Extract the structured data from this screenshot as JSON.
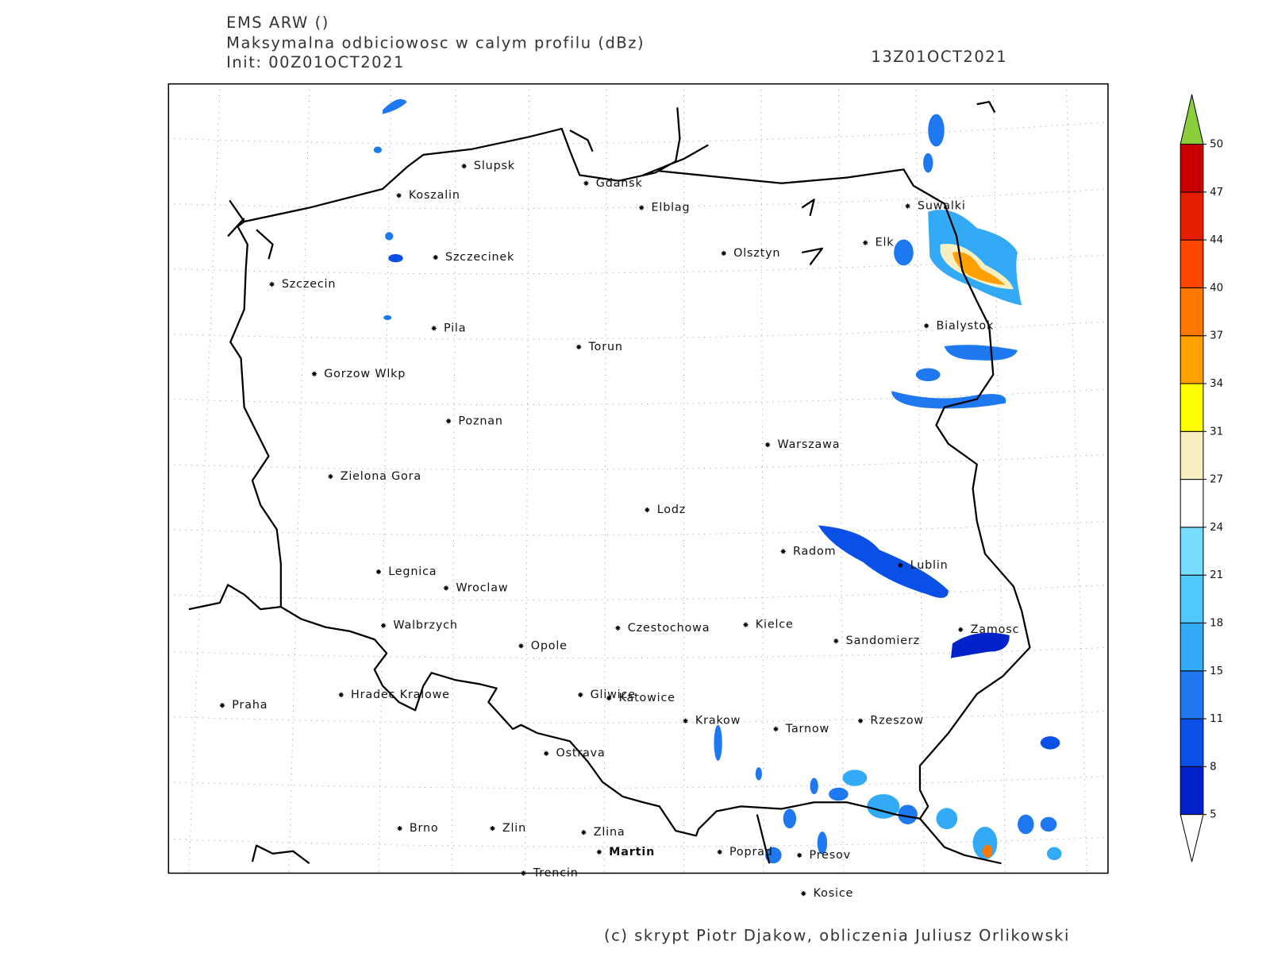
{
  "header": {
    "model": "EMS ARW ()",
    "field": "Maksymalna odbiciowosc w calym profilu (dBz)",
    "init": "Init: 00Z01OCT2021",
    "valid": "13Z01OCT2021"
  },
  "cities": [
    "Slupsk",
    "Koszalin",
    "Gdansk",
    "Elblag",
    "Suwalki",
    "Elk",
    "Olsztyn",
    "Szczecinek",
    "Szczecin",
    "Bialystok",
    "Pila",
    "Torun",
    "Gorzow Wlkp",
    "Poznan",
    "Warszawa",
    "Zielona Gora",
    "Lodz",
    "Radom",
    "Lublin",
    "Legnica",
    "Wroclaw",
    "Walbrzych",
    "Czestochowa",
    "Kielce",
    "Zamosc",
    "Opole",
    "Sandomierz",
    "Praha",
    "Hradec Kralowe",
    "Gliwice",
    "Katowice",
    "Krakow",
    "Tarnow",
    "Rzeszow",
    "Ostrava",
    "Brno",
    "Zlin",
    "Zlina",
    "Martin",
    "Poprad",
    "Presov",
    "Trencin",
    "Kosice"
  ],
  "colorbar": {
    "ticks": [
      5,
      8,
      11,
      15,
      18,
      21,
      24,
      27,
      31,
      34,
      37,
      40,
      44,
      47,
      50
    ],
    "colors": [
      "#0022c8",
      "#0a50e6",
      "#1e78f0",
      "#32aaf5",
      "#50c8fa",
      "#78dcff",
      "#ffffff",
      "#f8f0c3",
      "#ffff00",
      "#ffa000",
      "#ff7800",
      "#ff4600",
      "#e61e00",
      "#c80000"
    ],
    "over_color": "#8ccd3c",
    "under_color": "#ffffff"
  },
  "footer": "(c) skrypt Piotr Djakow, obliczenia Juliusz Orlikowski"
}
